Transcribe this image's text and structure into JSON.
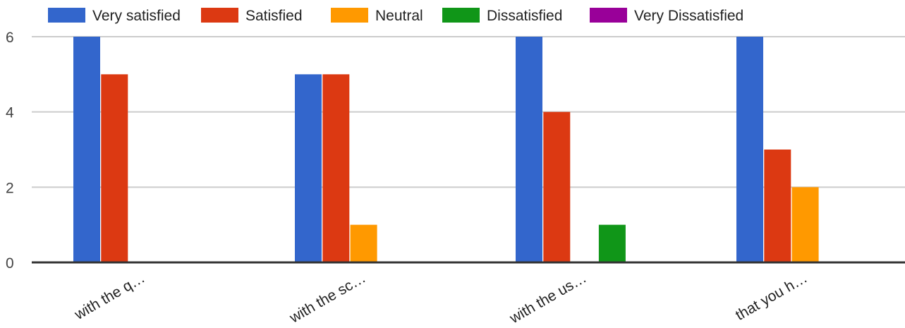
{
  "chart_data": {
    "type": "bar",
    "categories": [
      "with the q…",
      "with the sc…",
      "with the us…",
      "that you h…"
    ],
    "series": [
      {
        "name": "Very satisfied",
        "color": "#3366cc",
        "values": [
          6,
          5,
          6,
          6
        ]
      },
      {
        "name": "Satisfied",
        "color": "#dc3912",
        "values": [
          5,
          5,
          4,
          3
        ]
      },
      {
        "name": "Neutral",
        "color": "#ff9900",
        "values": [
          0,
          1,
          0,
          2
        ]
      },
      {
        "name": "Dissatisfied",
        "color": "#109618",
        "values": [
          0,
          0,
          1,
          0
        ]
      },
      {
        "name": "Very Dissatisfied",
        "color": "#990099",
        "values": [
          0,
          0,
          0,
          0
        ]
      }
    ],
    "y_ticks": [
      0,
      2,
      4,
      6
    ],
    "ylim": [
      0,
      6
    ],
    "grid": true,
    "legend_position": "top"
  }
}
